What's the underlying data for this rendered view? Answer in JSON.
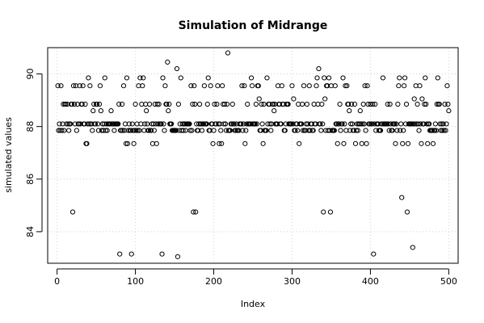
{
  "chart_data": {
    "type": "scatter",
    "title": "Simulation of Midrange",
    "xlabel": "Index",
    "ylabel": "simulated values",
    "xlim": [
      -12,
      512
    ],
    "ylim": [
      82.8,
      91.0
    ],
    "xticks": [
      0,
      100,
      200,
      300,
      400,
      500
    ],
    "yticks": [
      84,
      86,
      88,
      90
    ],
    "grid": true,
    "marker": "open-circle",
    "n_points": 500,
    "common_levels": [
      87.85,
      88.1,
      88.85
    ],
    "secondary_levels": [
      87.35,
      88.6,
      89.55
    ],
    "points": [
      {
        "x": 1,
        "y": 89.55
      },
      {
        "x": 20,
        "y": 84.75
      },
      {
        "x": 21,
        "y": 89.55
      },
      {
        "x": 24,
        "y": 89.55
      },
      {
        "x": 29,
        "y": 89.55
      },
      {
        "x": 33,
        "y": 89.55
      },
      {
        "x": 37,
        "y": 87.35
      },
      {
        "x": 38,
        "y": 87.35
      },
      {
        "x": 40,
        "y": 89.85
      },
      {
        "x": 42,
        "y": 89.55
      },
      {
        "x": 55,
        "y": 89.55
      },
      {
        "x": 56,
        "y": 88.6
      },
      {
        "x": 61,
        "y": 89.85
      },
      {
        "x": 80,
        "y": 83.15
      },
      {
        "x": 85,
        "y": 89.55
      },
      {
        "x": 89,
        "y": 89.85
      },
      {
        "x": 88,
        "y": 87.35
      },
      {
        "x": 90,
        "y": 87.35
      },
      {
        "x": 95,
        "y": 83.15
      },
      {
        "x": 104,
        "y": 89.55
      },
      {
        "x": 106,
        "y": 89.85
      },
      {
        "x": 109,
        "y": 89.55
      },
      {
        "x": 110,
        "y": 89.85
      },
      {
        "x": 127,
        "y": 87.35
      },
      {
        "x": 134,
        "y": 83.15
      },
      {
        "x": 135,
        "y": 89.85
      },
      {
        "x": 138,
        "y": 89.55
      },
      {
        "x": 141,
        "y": 90.45
      },
      {
        "x": 153,
        "y": 90.2
      },
      {
        "x": 154,
        "y": 83.05
      },
      {
        "x": 158,
        "y": 89.85
      },
      {
        "x": 174,
        "y": 84.75
      },
      {
        "x": 177,
        "y": 84.75
      },
      {
        "x": 175,
        "y": 89.55
      },
      {
        "x": 188,
        "y": 89.55
      },
      {
        "x": 193,
        "y": 89.85
      },
      {
        "x": 196,
        "y": 89.55
      },
      {
        "x": 199,
        "y": 87.35
      },
      {
        "x": 205,
        "y": 89.55
      },
      {
        "x": 211,
        "y": 89.55
      },
      {
        "x": 218,
        "y": 90.8
      },
      {
        "x": 236,
        "y": 89.55
      },
      {
        "x": 240,
        "y": 87.35
      },
      {
        "x": 248,
        "y": 89.85
      },
      {
        "x": 258,
        "y": 89.05
      },
      {
        "x": 263,
        "y": 87.35
      },
      {
        "x": 268,
        "y": 89.85
      },
      {
        "x": 282,
        "y": 89.55
      },
      {
        "x": 287,
        "y": 89.55
      },
      {
        "x": 300,
        "y": 89.55
      },
      {
        "x": 302,
        "y": 89.05
      },
      {
        "x": 309,
        "y": 87.35
      },
      {
        "x": 315,
        "y": 89.55
      },
      {
        "x": 322,
        "y": 89.55
      },
      {
        "x": 332,
        "y": 89.85
      },
      {
        "x": 334,
        "y": 90.2
      },
      {
        "x": 340,
        "y": 84.75
      },
      {
        "x": 341,
        "y": 89.85
      },
      {
        "x": 342,
        "y": 89.05
      },
      {
        "x": 345,
        "y": 89.55
      },
      {
        "x": 347,
        "y": 89.85
      },
      {
        "x": 349,
        "y": 84.75
      },
      {
        "x": 350,
        "y": 89.55
      },
      {
        "x": 355,
        "y": 89.55
      },
      {
        "x": 358,
        "y": 87.35
      },
      {
        "x": 365,
        "y": 89.85
      },
      {
        "x": 366,
        "y": 87.35
      },
      {
        "x": 381,
        "y": 87.35
      },
      {
        "x": 389,
        "y": 87.35
      },
      {
        "x": 393,
        "y": 89.55
      },
      {
        "x": 395,
        "y": 87.35
      },
      {
        "x": 404,
        "y": 83.15
      },
      {
        "x": 416,
        "y": 89.85
      },
      {
        "x": 432,
        "y": 87.35
      },
      {
        "x": 436,
        "y": 89.55
      },
      {
        "x": 437,
        "y": 89.85
      },
      {
        "x": 440,
        "y": 85.3
      },
      {
        "x": 441,
        "y": 87.35
      },
      {
        "x": 443,
        "y": 89.55
      },
      {
        "x": 444,
        "y": 89.85
      },
      {
        "x": 447,
        "y": 84.75
      },
      {
        "x": 448,
        "y": 87.35
      },
      {
        "x": 454,
        "y": 83.4
      },
      {
        "x": 456,
        "y": 89.05
      },
      {
        "x": 458,
        "y": 89.55
      },
      {
        "x": 465,
        "y": 87.35
      },
      {
        "x": 466,
        "y": 89.05
      },
      {
        "x": 470,
        "y": 89.85
      },
      {
        "x": 480,
        "y": 87.35
      },
      {
        "x": 486,
        "y": 89.85
      },
      {
        "x": 498,
        "y": 89.55
      }
    ]
  }
}
